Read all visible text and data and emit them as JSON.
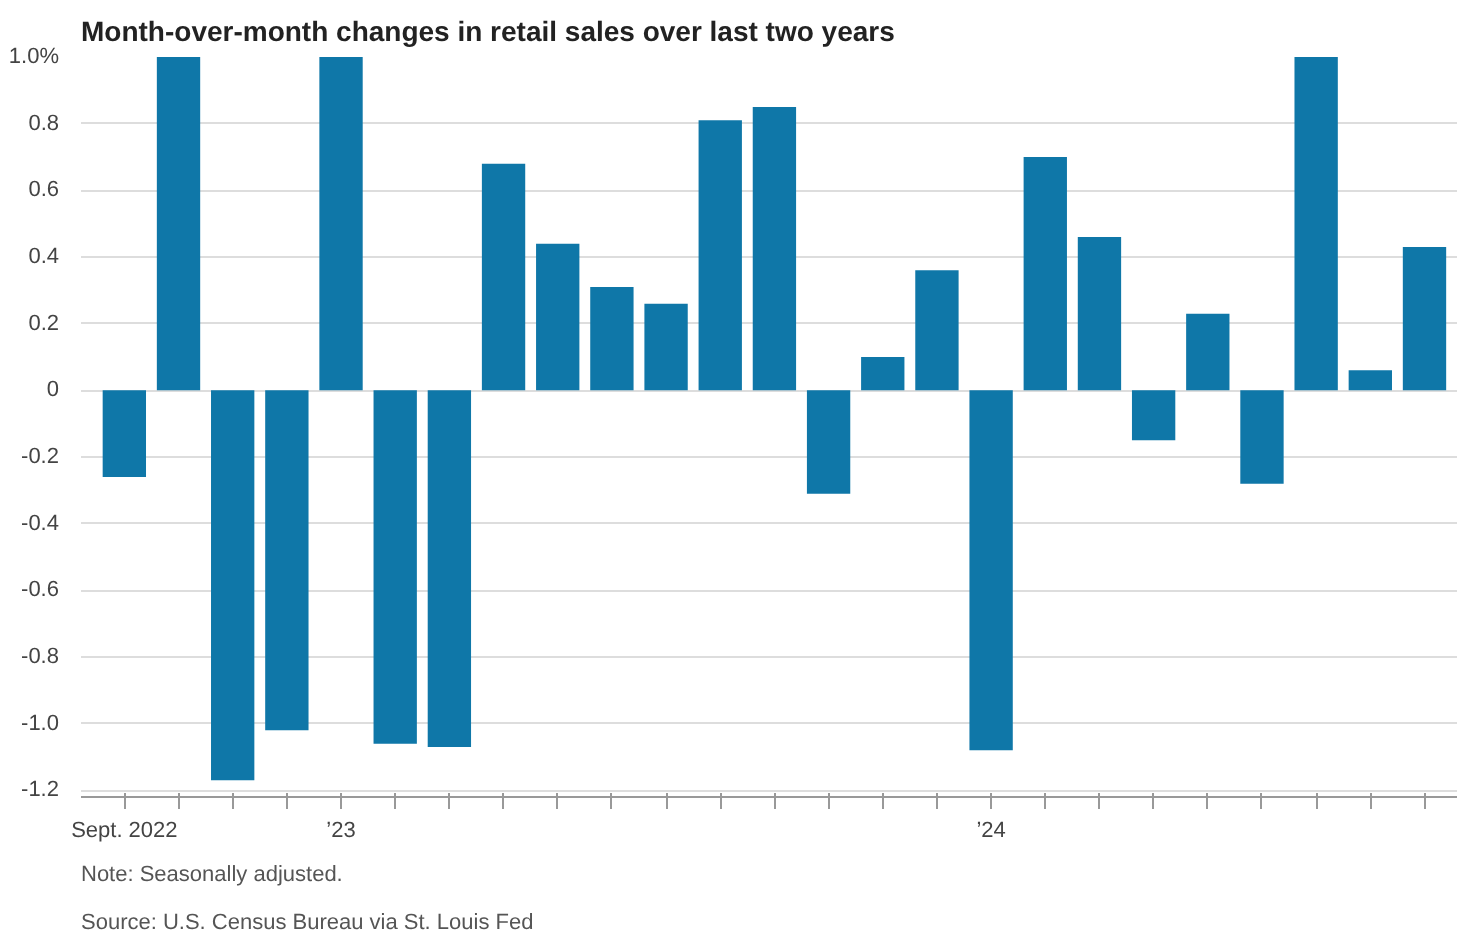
{
  "chart_data": {
    "type": "bar",
    "title": "Month-over-month changes in retail sales over last two years",
    "categories": [
      "Sept. 2022",
      null,
      null,
      null,
      "’23",
      null,
      null,
      null,
      null,
      null,
      null,
      null,
      null,
      null,
      null,
      null,
      "’24",
      null,
      null,
      null,
      null,
      null,
      null,
      null,
      null
    ],
    "values": [
      -0.26,
      1.0,
      -1.17,
      -1.02,
      1.0,
      -1.06,
      -1.07,
      0.68,
      0.44,
      0.31,
      0.26,
      0.81,
      0.85,
      -0.31,
      0.1,
      0.36,
      -1.08,
      0.7,
      0.46,
      -0.15,
      0.23,
      -0.28,
      1.0,
      0.06,
      0.43
    ],
    "color": "#0f77a8",
    "ylim": [
      -1.22,
      1.0
    ],
    "yticks": [
      {
        "value": 1.0,
        "label": "1.0%"
      },
      0.8,
      0.6,
      0.4,
      0.2,
      0,
      -0.2,
      -0.4,
      -0.6,
      -0.8,
      {
        "value": -1.0,
        "label": "-1.0"
      },
      -1.2
    ],
    "grid": "y",
    "annotations": [
      "Note: Seasonally adjusted.",
      "Source: U.S. Census Bureau via St. Louis Fed"
    ]
  }
}
